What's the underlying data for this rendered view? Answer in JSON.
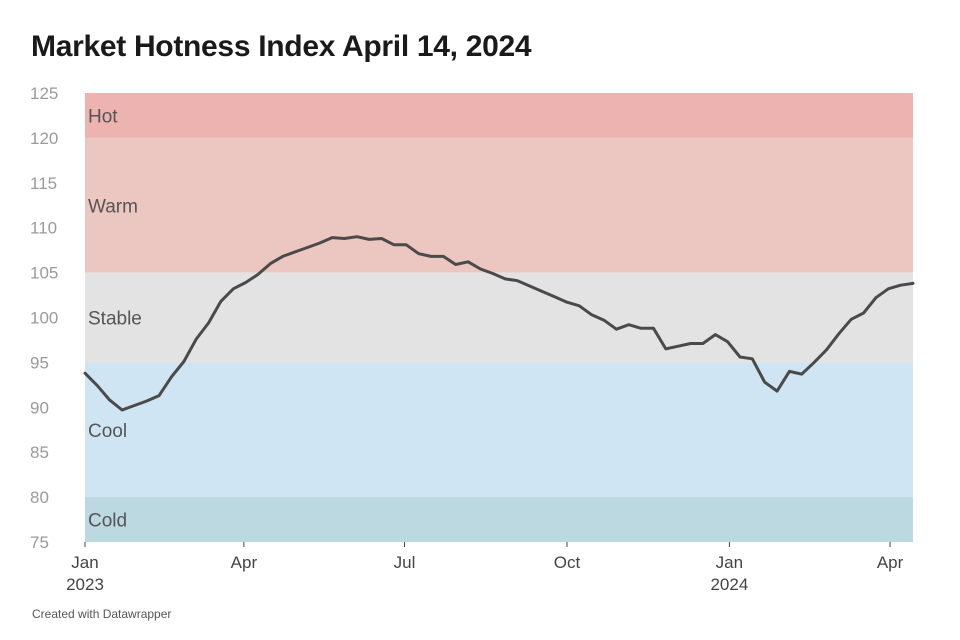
{
  "title": "Market Hotness Index April 14, 2024",
  "footer": "Created with Datawrapper",
  "chart_data": {
    "type": "line",
    "title": "Market Hotness Index April 14, 2024",
    "xlabel": "",
    "ylabel": "",
    "ylim": [
      75,
      125
    ],
    "yticks": [
      "125",
      "120",
      "115",
      "110",
      "105",
      "100",
      "95",
      "90",
      "85",
      "80",
      "75"
    ],
    "xlim": [
      "2023-01-01",
      "2024-04-14"
    ],
    "xticks": [
      {
        "date": "2023-01-01",
        "label": "Jan",
        "sublabel": "2023"
      },
      {
        "date": "2023-04-01",
        "label": "Apr",
        "sublabel": ""
      },
      {
        "date": "2023-07-01",
        "label": "Jul",
        "sublabel": ""
      },
      {
        "date": "2023-10-01",
        "label": "Oct",
        "sublabel": ""
      },
      {
        "date": "2024-01-01",
        "label": "Jan",
        "sublabel": "2024"
      },
      {
        "date": "2024-04-01",
        "label": "Apr",
        "sublabel": ""
      }
    ],
    "bands": [
      {
        "label": "Hot",
        "from": 120,
        "to": 125,
        "color": "#ecb3b1"
      },
      {
        "label": "Warm",
        "from": 105,
        "to": 120,
        "color": "#ecc6c0"
      },
      {
        "label": "Stable",
        "from": 95,
        "to": 105,
        "color": "#e3e3e3"
      },
      {
        "label": "Cool",
        "from": 80,
        "to": 95,
        "color": "#cfe5f3"
      },
      {
        "label": "Cold",
        "from": 75,
        "to": 80,
        "color": "#bcd9e1"
      }
    ],
    "line_color": "#4a4a4a",
    "series": [
      {
        "x": [
          "2023-01-01",
          "2023-01-08",
          "2023-01-15",
          "2023-01-22",
          "2023-01-29",
          "2023-02-05",
          "2023-02-12",
          "2023-02-19",
          "2023-02-26",
          "2023-03-05",
          "2023-03-12",
          "2023-03-19",
          "2023-03-26",
          "2023-04-02",
          "2023-04-09",
          "2023-04-16",
          "2023-04-23",
          "2023-04-30",
          "2023-05-07",
          "2023-05-14",
          "2023-05-21",
          "2023-05-28",
          "2023-06-04",
          "2023-06-11",
          "2023-06-18",
          "2023-06-25",
          "2023-07-02",
          "2023-07-09",
          "2023-07-16",
          "2023-07-23",
          "2023-07-30",
          "2023-08-06",
          "2023-08-13",
          "2023-08-20",
          "2023-08-27",
          "2023-09-03",
          "2023-09-10",
          "2023-09-17",
          "2023-09-24",
          "2023-10-01",
          "2023-10-08",
          "2023-10-15",
          "2023-10-22",
          "2023-10-29",
          "2023-11-05",
          "2023-11-12",
          "2023-11-19",
          "2023-11-26",
          "2023-12-03",
          "2023-12-10",
          "2023-12-17",
          "2023-12-24",
          "2023-12-31",
          "2024-01-07",
          "2024-01-14",
          "2024-01-21",
          "2024-01-28",
          "2024-02-04",
          "2024-02-11",
          "2024-02-18",
          "2024-02-25",
          "2024-03-03",
          "2024-03-10",
          "2024-03-17",
          "2024-03-24",
          "2024-03-31",
          "2024-04-07",
          "2024-04-14"
        ],
        "values": [
          93.8,
          92.4,
          90.8,
          89.7,
          90.2,
          90.7,
          91.3,
          93.4,
          95.1,
          97.6,
          99.4,
          101.8,
          103.2,
          103.9,
          104.8,
          106.0,
          106.8,
          107.3,
          107.8,
          108.3,
          108.9,
          108.8,
          109.0,
          108.7,
          108.8,
          108.1,
          108.1,
          107.1,
          106.8,
          106.8,
          105.9,
          106.2,
          105.4,
          104.9,
          104.3,
          104.1,
          103.5,
          102.9,
          102.3,
          101.7,
          101.3,
          100.3,
          99.7,
          98.7,
          99.2,
          98.8,
          98.8,
          96.5,
          96.8,
          97.1,
          97.1,
          98.1,
          97.3,
          95.6,
          95.4,
          92.8,
          91.8,
          94.0,
          93.7,
          95.0,
          96.4,
          98.2,
          99.8,
          100.5,
          102.2,
          103.2,
          103.6,
          103.8
        ]
      }
    ]
  }
}
